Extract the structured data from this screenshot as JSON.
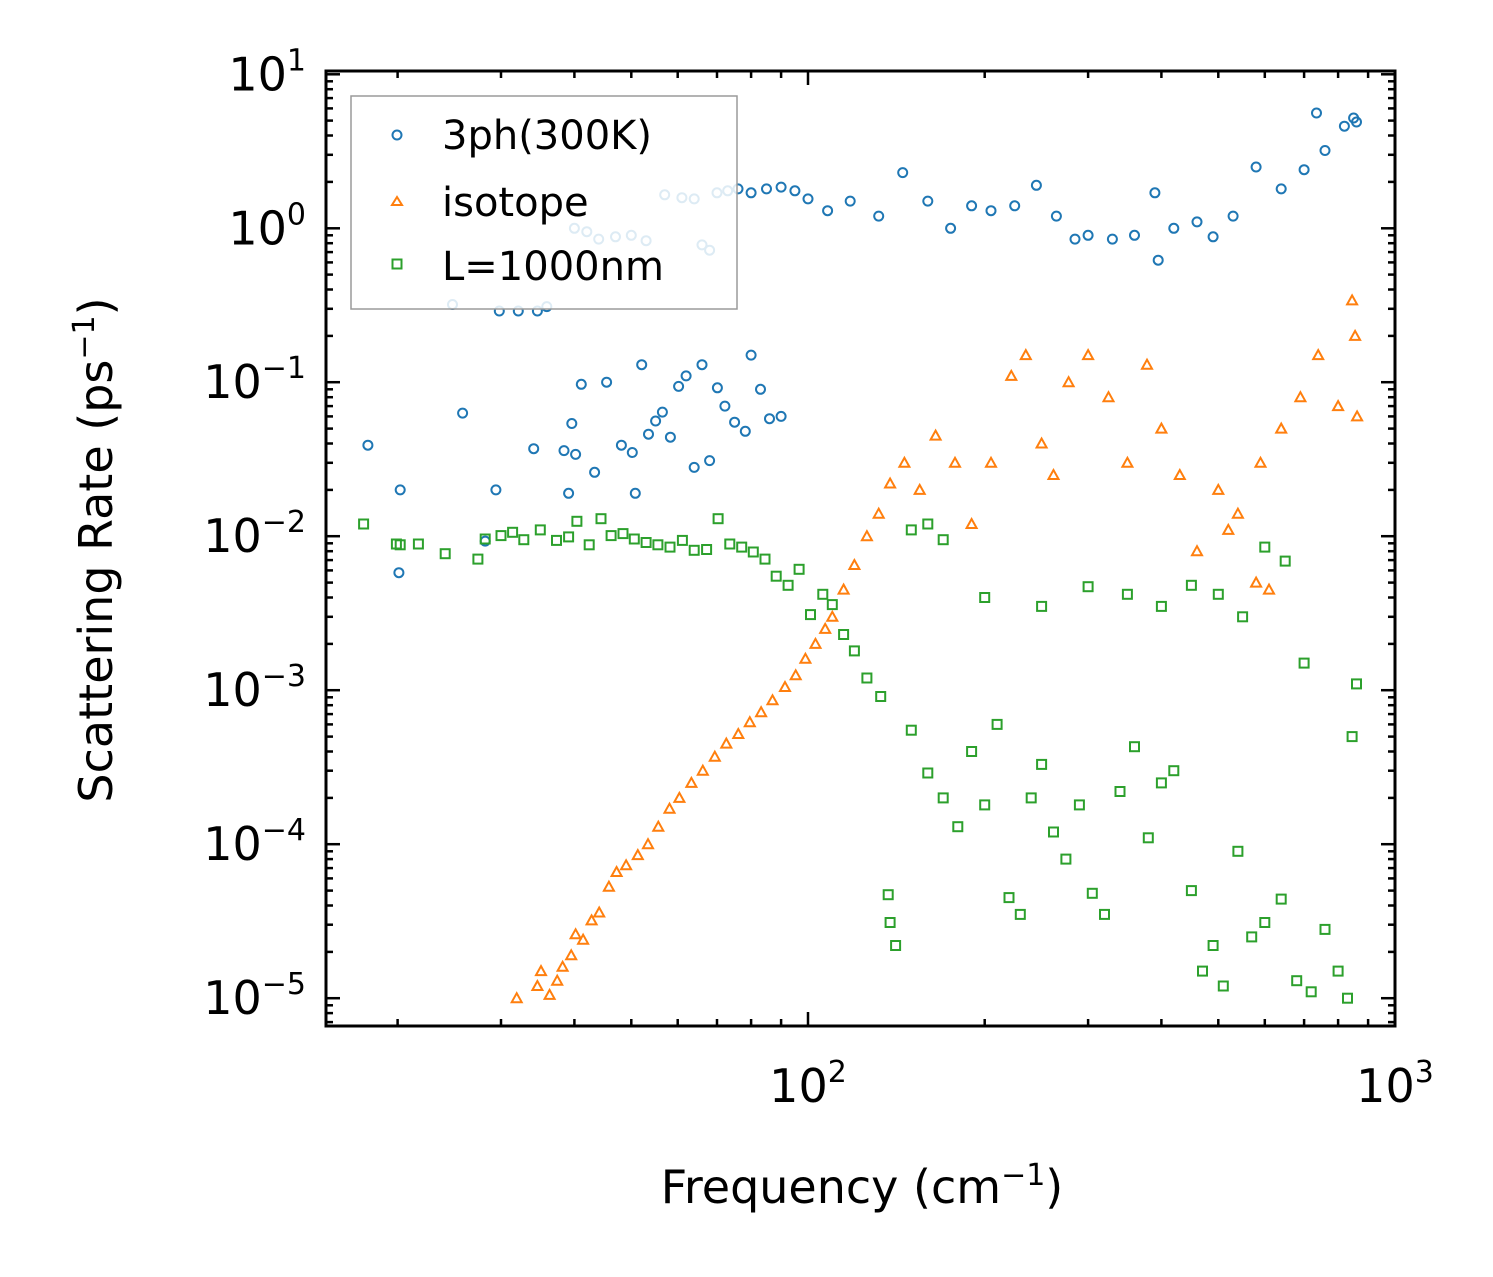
{
  "chart_data": {
    "type": "scatter",
    "title": "",
    "xlabel": {
      "text": "Frequency (cm",
      "exp": "−1",
      "suffix": ")"
    },
    "ylabel": {
      "text": "Scattering Rate (ps",
      "exp": "−1",
      "suffix": ")"
    },
    "xscale": "log",
    "yscale": "log",
    "xlim": [
      15.1,
      1000
    ],
    "ylim": [
      6.6e-06,
      10.5
    ],
    "grid": false,
    "legend_position": "top-left",
    "x_ticks": [
      {
        "value": 100,
        "base": "10",
        "exp": "2"
      },
      {
        "value": 1000,
        "base": "10",
        "exp": "3"
      }
    ],
    "y_ticks": [
      {
        "value": 10,
        "base": "10",
        "exp": "1"
      },
      {
        "value": 1,
        "base": "10",
        "exp": "0"
      },
      {
        "value": 0.1,
        "base": "10",
        "exp": "−1"
      },
      {
        "value": 0.01,
        "base": "10",
        "exp": "−2"
      },
      {
        "value": 0.001,
        "base": "10",
        "exp": "−3"
      },
      {
        "value": 0.0001,
        "base": "10",
        "exp": "−4"
      },
      {
        "value": 1e-05,
        "base": "10",
        "exp": "−5"
      }
    ],
    "series": [
      {
        "name": "3ph(300K)",
        "marker": "circle",
        "color": "#1f77b4",
        "points": [
          [
            17.8,
            0.039
          ],
          [
            20.1,
            0.0058
          ],
          [
            20.2,
            0.02
          ],
          [
            24.8,
            0.32
          ],
          [
            25.8,
            0.063
          ],
          [
            28.2,
            0.0093
          ],
          [
            29.4,
            0.02
          ],
          [
            29.8,
            0.29
          ],
          [
            32.1,
            0.29
          ],
          [
            34.1,
            0.037
          ],
          [
            34.6,
            0.29
          ],
          [
            35.9,
            0.31
          ],
          [
            38.4,
            0.036
          ],
          [
            39.1,
            0.019
          ],
          [
            39.6,
            0.054
          ],
          [
            40.2,
            0.034
          ],
          [
            41.1,
            0.097
          ],
          [
            43.3,
            0.026
          ],
          [
            45.4,
            0.1
          ],
          [
            48.1,
            0.039
          ],
          [
            50.2,
            0.035
          ],
          [
            50.8,
            0.019
          ],
          [
            52.1,
            0.13
          ],
          [
            53.5,
            0.046
          ],
          [
            55.0,
            0.056
          ],
          [
            56.5,
            0.064
          ],
          [
            58.3,
            0.044
          ],
          [
            60.2,
            0.094
          ],
          [
            62.0,
            0.11
          ],
          [
            64.0,
            0.028
          ],
          [
            66.0,
            0.13
          ],
          [
            68.0,
            0.031
          ],
          [
            70.1,
            0.092
          ],
          [
            72.2,
            0.07
          ],
          [
            75.0,
            0.055
          ],
          [
            78.2,
            0.048
          ],
          [
            80.0,
            0.15
          ],
          [
            83.0,
            0.09
          ],
          [
            86.0,
            0.058
          ],
          [
            90.0,
            0.06
          ],
          [
            40.0,
            1.0
          ],
          [
            42.0,
            0.95
          ],
          [
            44.0,
            0.85
          ],
          [
            47.0,
            0.88
          ],
          [
            50.0,
            0.9
          ],
          [
            53.0,
            0.83
          ],
          [
            57.0,
            1.65
          ],
          [
            61.0,
            1.58
          ],
          [
            64.0,
            1.55
          ],
          [
            66.0,
            0.78
          ],
          [
            68.0,
            0.72
          ],
          [
            70.0,
            1.7
          ],
          [
            73.0,
            1.75
          ],
          [
            76.0,
            1.8
          ],
          [
            80.0,
            1.7
          ],
          [
            85.0,
            1.8
          ],
          [
            90.0,
            1.85
          ],
          [
            95.0,
            1.75
          ],
          [
            100.0,
            1.55
          ],
          [
            108.0,
            1.3
          ],
          [
            118.0,
            1.5
          ],
          [
            132.0,
            1.2
          ],
          [
            145.0,
            2.3
          ],
          [
            160.0,
            1.5
          ],
          [
            175.0,
            1.0
          ],
          [
            190.0,
            1.4
          ],
          [
            205.0,
            1.3
          ],
          [
            225.0,
            1.4
          ],
          [
            245.0,
            1.9
          ],
          [
            265.0,
            1.2
          ],
          [
            285.0,
            0.85
          ],
          [
            300.0,
            0.9
          ],
          [
            330.0,
            0.85
          ],
          [
            360.0,
            0.9
          ],
          [
            390.0,
            1.7
          ],
          [
            395.0,
            0.62
          ],
          [
            420.0,
            1.0
          ],
          [
            460.0,
            1.1
          ],
          [
            490.0,
            0.88
          ],
          [
            530.0,
            1.2
          ],
          [
            580.0,
            2.5
          ],
          [
            640.0,
            1.8
          ],
          [
            700.0,
            2.4
          ],
          [
            760.0,
            3.2
          ],
          [
            820.0,
            4.6
          ],
          [
            850.0,
            5.2
          ],
          [
            860.0,
            4.9
          ],
          [
            735.0,
            5.6
          ]
        ]
      },
      {
        "name": "isotope",
        "marker": "triangle",
        "color": "#ff7f0e",
        "points": [
          [
            31.9,
            1e-05
          ],
          [
            34.6,
            1.2e-05
          ],
          [
            35.1,
            1.5e-05
          ],
          [
            36.3,
            1.05e-05
          ],
          [
            37.4,
            1.3e-05
          ],
          [
            38.2,
            1.6e-05
          ],
          [
            39.5,
            1.9e-05
          ],
          [
            40.2,
            2.6e-05
          ],
          [
            41.4,
            2.4e-05
          ],
          [
            42.8,
            3.2e-05
          ],
          [
            44.1,
            3.6e-05
          ],
          [
            45.8,
            5.3e-05
          ],
          [
            47.2,
            6.6e-05
          ],
          [
            49.0,
            7.3e-05
          ],
          [
            51.3,
            8.5e-05
          ],
          [
            53.4,
            0.0001
          ],
          [
            55.6,
            0.00013
          ],
          [
            58.1,
            0.00017
          ],
          [
            60.4,
            0.0002
          ],
          [
            63.3,
            0.00025
          ],
          [
            66.2,
            0.0003
          ],
          [
            69.4,
            0.00037
          ],
          [
            72.6,
            0.00045
          ],
          [
            76.1,
            0.00052
          ],
          [
            79.6,
            0.00062
          ],
          [
            83.2,
            0.00072
          ],
          [
            87.0,
            0.00086
          ],
          [
            91.4,
            0.00105
          ],
          [
            95.3,
            0.00125
          ],
          [
            99.0,
            0.0016
          ],
          [
            103.0,
            0.002
          ],
          [
            107.0,
            0.0025
          ],
          [
            110.0,
            0.003
          ],
          [
            115.0,
            0.0045
          ],
          [
            120.0,
            0.0065
          ],
          [
            126.0,
            0.01
          ],
          [
            132.0,
            0.014
          ],
          [
            138.0,
            0.022
          ],
          [
            146.0,
            0.03
          ],
          [
            155.0,
            0.02
          ],
          [
            165.0,
            0.045
          ],
          [
            178.0,
            0.03
          ],
          [
            190.0,
            0.012
          ],
          [
            205.0,
            0.03
          ],
          [
            222.0,
            0.11
          ],
          [
            235.0,
            0.15
          ],
          [
            250.0,
            0.04
          ],
          [
            262.0,
            0.025
          ],
          [
            278.0,
            0.1
          ],
          [
            300.0,
            0.15
          ],
          [
            325.0,
            0.08
          ],
          [
            350.0,
            0.03
          ],
          [
            378.0,
            0.13
          ],
          [
            400.0,
            0.05
          ],
          [
            430.0,
            0.025
          ],
          [
            460.0,
            0.008
          ],
          [
            500.0,
            0.02
          ],
          [
            540.0,
            0.014
          ],
          [
            590.0,
            0.03
          ],
          [
            640.0,
            0.05
          ],
          [
            690.0,
            0.08
          ],
          [
            740.0,
            0.15
          ],
          [
            800.0,
            0.07
          ],
          [
            845.0,
            0.34
          ],
          [
            855.0,
            0.2
          ],
          [
            862.0,
            0.06
          ],
          [
            580.0,
            0.005
          ],
          [
            610.0,
            0.0045
          ],
          [
            520.0,
            0.011
          ]
        ]
      },
      {
        "name": "L=1000nm",
        "marker": "square",
        "color": "#2ca02c",
        "points": [
          [
            17.5,
            0.012
          ],
          [
            19.9,
            0.0089
          ],
          [
            20.2,
            0.0088
          ],
          [
            21.7,
            0.0089
          ],
          [
            24.1,
            0.0077
          ],
          [
            27.4,
            0.0071
          ],
          [
            28.2,
            0.0096
          ],
          [
            30.0,
            0.0101
          ],
          [
            31.4,
            0.0106
          ],
          [
            32.8,
            0.0095
          ],
          [
            35.0,
            0.011
          ],
          [
            37.3,
            0.0094
          ],
          [
            39.1,
            0.0099
          ],
          [
            40.4,
            0.0125
          ],
          [
            42.4,
            0.0088
          ],
          [
            44.4,
            0.013
          ],
          [
            46.2,
            0.0101
          ],
          [
            48.4,
            0.0104
          ],
          [
            50.6,
            0.0096
          ],
          [
            53.0,
            0.0091
          ],
          [
            55.5,
            0.0088
          ],
          [
            58.2,
            0.0085
          ],
          [
            61.1,
            0.0094
          ],
          [
            64.0,
            0.0081
          ],
          [
            67.2,
            0.0082
          ],
          [
            70.3,
            0.013
          ],
          [
            73.6,
            0.0089
          ],
          [
            77.1,
            0.0085
          ],
          [
            80.7,
            0.0079
          ],
          [
            84.5,
            0.0071
          ],
          [
            88.3,
            0.0055
          ],
          [
            92.5,
            0.0048
          ],
          [
            96.6,
            0.0061
          ],
          [
            101.0,
            0.0031
          ],
          [
            106.0,
            0.0042
          ],
          [
            110.0,
            0.0036
          ],
          [
            115.0,
            0.0023
          ],
          [
            120.0,
            0.0018
          ],
          [
            126.0,
            0.0012
          ],
          [
            133.0,
            0.00091
          ],
          [
            137.0,
            4.7e-05
          ],
          [
            138.0,
            3.1e-05
          ],
          [
            141.0,
            2.2e-05
          ],
          [
            150.0,
            0.00055
          ],
          [
            160.0,
            0.00029
          ],
          [
            170.0,
            0.0002
          ],
          [
            180.0,
            0.00013
          ],
          [
            190.0,
            0.0004
          ],
          [
            200.0,
            0.00018
          ],
          [
            210.0,
            0.0006
          ],
          [
            220.0,
            4.5e-05
          ],
          [
            230.0,
            3.5e-05
          ],
          [
            240.0,
            0.0002
          ],
          [
            250.0,
            0.00033
          ],
          [
            262.0,
            0.00012
          ],
          [
            275.0,
            8e-05
          ],
          [
            290.0,
            0.00018
          ],
          [
            305.0,
            4.8e-05
          ],
          [
            320.0,
            3.5e-05
          ],
          [
            340.0,
            0.00022
          ],
          [
            360.0,
            0.00043
          ],
          [
            380.0,
            0.00011
          ],
          [
            400.0,
            0.00025
          ],
          [
            420.0,
            0.0003
          ],
          [
            450.0,
            5e-05
          ],
          [
            470.0,
            1.5e-05
          ],
          [
            490.0,
            2.2e-05
          ],
          [
            510.0,
            1.2e-05
          ],
          [
            540.0,
            9e-05
          ],
          [
            570.0,
            2.5e-05
          ],
          [
            600.0,
            3.1e-05
          ],
          [
            640.0,
            4.4e-05
          ],
          [
            680.0,
            1.3e-05
          ],
          [
            720.0,
            1.1e-05
          ],
          [
            760.0,
            2.8e-05
          ],
          [
            800.0,
            1.5e-05
          ],
          [
            830.0,
            1e-05
          ],
          [
            845.0,
            0.0005
          ],
          [
            860.0,
            0.0011
          ],
          [
            700.0,
            0.0015
          ],
          [
            650.0,
            0.0069
          ],
          [
            600.0,
            0.0085
          ],
          [
            550.0,
            0.003
          ],
          [
            500.0,
            0.0042
          ],
          [
            450.0,
            0.0048
          ],
          [
            400.0,
            0.0035
          ],
          [
            350.0,
            0.0042
          ],
          [
            300.0,
            0.0047
          ],
          [
            250.0,
            0.0035
          ],
          [
            200.0,
            0.004
          ],
          [
            170.0,
            0.0095
          ],
          [
            160.0,
            0.012
          ],
          [
            150.0,
            0.011
          ]
        ]
      }
    ]
  }
}
